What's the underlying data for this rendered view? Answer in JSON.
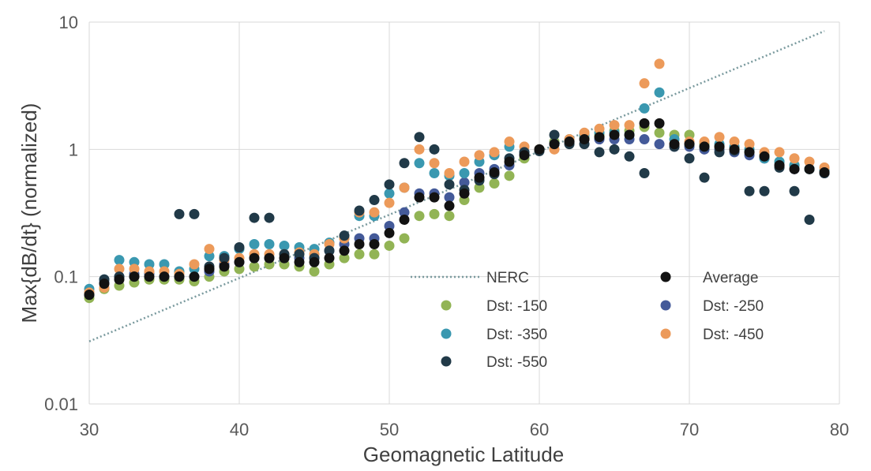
{
  "chart_data": {
    "type": "scatter",
    "title": "",
    "xlabel": "Geomagnetic Latitude",
    "ylabel": "Max{dB/dt} (normalized)",
    "xlim": [
      30,
      80
    ],
    "ylim": [
      0.01,
      10
    ],
    "yscale": "log",
    "xticks": [
      "30",
      "40",
      "50",
      "60",
      "70",
      "80"
    ],
    "yticks": [
      "0.01",
      "0.1",
      "1",
      "10"
    ],
    "grid": true,
    "legend_position": "lower-right",
    "nerc_line": {
      "name": "NERC",
      "color": "#7a9a9e",
      "x": [
        30,
        79
      ],
      "y": [
        0.031,
        8.5
      ]
    },
    "series": [
      {
        "name": "Dst: -150",
        "color": "#92b455",
        "x": [
          30,
          31,
          32,
          33,
          34,
          35,
          36,
          37,
          38,
          39,
          40,
          41,
          42,
          43,
          44,
          45,
          46,
          47,
          48,
          49,
          50,
          51,
          52,
          53,
          54,
          55,
          56,
          57,
          58,
          59,
          60,
          61,
          62,
          63,
          64,
          65,
          66,
          67,
          68,
          69,
          70,
          71,
          72,
          73,
          74,
          75,
          76,
          77,
          78,
          79
        ],
        "y": [
          0.068,
          0.08,
          0.085,
          0.09,
          0.095,
          0.095,
          0.095,
          0.092,
          0.1,
          0.11,
          0.115,
          0.12,
          0.125,
          0.125,
          0.12,
          0.11,
          0.125,
          0.14,
          0.15,
          0.15,
          0.175,
          0.2,
          0.3,
          0.31,
          0.3,
          0.4,
          0.5,
          0.54,
          0.62,
          0.85,
          1.0,
          1.15,
          1.18,
          1.25,
          1.3,
          1.4,
          1.4,
          1.5,
          1.35,
          1.3,
          1.3,
          1.1,
          1.05,
          1.0,
          0.95,
          0.9,
          0.8,
          0.75,
          0.7,
          0.68
        ]
      },
      {
        "name": "Dst: -250",
        "color": "#445a99",
        "x": [
          30,
          31,
          32,
          33,
          34,
          35,
          36,
          37,
          38,
          39,
          40,
          41,
          42,
          43,
          44,
          45,
          46,
          47,
          48,
          49,
          50,
          51,
          52,
          53,
          54,
          55,
          56,
          57,
          58,
          59,
          60,
          61,
          62,
          63,
          64,
          65,
          66,
          67,
          68,
          69,
          70,
          71,
          72,
          73,
          74,
          75,
          76,
          77,
          78,
          79
        ],
        "y": [
          0.075,
          0.09,
          0.1,
          0.105,
          0.105,
          0.1,
          0.1,
          0.1,
          0.11,
          0.125,
          0.13,
          0.14,
          0.14,
          0.14,
          0.14,
          0.14,
          0.16,
          0.18,
          0.2,
          0.2,
          0.25,
          0.32,
          0.45,
          0.45,
          0.42,
          0.55,
          0.65,
          0.7,
          0.75,
          0.92,
          1.0,
          1.1,
          1.15,
          1.2,
          1.2,
          1.2,
          1.2,
          1.2,
          1.1,
          1.05,
          1.05,
          1.0,
          1.0,
          0.95,
          0.9,
          0.85,
          0.75,
          0.7,
          0.7,
          0.65
        ]
      },
      {
        "name": "Dst: -350",
        "color": "#3a98b0",
        "x": [
          30,
          31,
          32,
          33,
          34,
          35,
          36,
          37,
          38,
          39,
          40,
          41,
          42,
          43,
          44,
          45,
          46,
          47,
          48,
          49,
          50,
          51,
          52,
          53,
          54,
          55,
          56,
          57,
          58,
          59,
          60,
          61,
          62,
          63,
          64,
          65,
          66,
          67,
          68,
          69,
          70,
          71,
          72,
          73,
          74,
          75,
          76,
          77,
          78,
          79
        ],
        "y": [
          0.08,
          0.095,
          0.135,
          0.13,
          0.125,
          0.125,
          0.11,
          0.115,
          0.145,
          0.145,
          0.165,
          0.18,
          0.18,
          0.175,
          0.17,
          0.165,
          0.185,
          0.2,
          0.3,
          0.3,
          0.45,
          0.5,
          0.78,
          0.65,
          0.62,
          0.65,
          0.8,
          0.9,
          1.05,
          0.95,
          1.0,
          1.1,
          1.2,
          1.3,
          1.35,
          1.35,
          1.3,
          2.1,
          2.8,
          1.2,
          1.1,
          1.05,
          1.1,
          1.05,
          1.0,
          0.85,
          0.8,
          0.75,
          0.7,
          0.68
        ]
      },
      {
        "name": "Dst: -450",
        "color": "#ec9a5a",
        "x": [
          30,
          31,
          32,
          33,
          34,
          35,
          36,
          37,
          38,
          39,
          40,
          41,
          42,
          43,
          44,
          45,
          46,
          47,
          48,
          49,
          50,
          51,
          52,
          53,
          54,
          55,
          56,
          57,
          58,
          59,
          60,
          61,
          62,
          63,
          64,
          65,
          66,
          67,
          68,
          69,
          70,
          71,
          72,
          73,
          74,
          75,
          76,
          77,
          78,
          79
        ],
        "y": [
          0.075,
          0.082,
          0.115,
          0.115,
          0.11,
          0.11,
          0.105,
          0.125,
          0.165,
          0.135,
          0.14,
          0.15,
          0.15,
          0.15,
          0.155,
          0.15,
          0.18,
          0.2,
          0.32,
          0.32,
          0.38,
          0.5,
          1.0,
          0.78,
          0.65,
          0.8,
          0.9,
          0.95,
          1.15,
          1.05,
          1.0,
          1.0,
          1.2,
          1.35,
          1.45,
          1.55,
          1.55,
          3.3,
          4.7,
          1.1,
          1.15,
          1.15,
          1.25,
          1.15,
          1.1,
          0.95,
          0.95,
          0.85,
          0.8,
          0.72
        ]
      },
      {
        "name": "Dst: -550",
        "color": "#213a48",
        "x": [
          30,
          31,
          32,
          33,
          36,
          37,
          38,
          39,
          40,
          41,
          42,
          43,
          44,
          45,
          46,
          47,
          48,
          49,
          50,
          51,
          52,
          53,
          54,
          55,
          56,
          57,
          58,
          59,
          60,
          61,
          62,
          63,
          64,
          65,
          66,
          67,
          69,
          70,
          71,
          72,
          73,
          74,
          75,
          76,
          77,
          78,
          79
        ],
        "y": [
          0.072,
          0.095,
          0.1,
          0.1,
          0.31,
          0.31,
          0.12,
          0.14,
          0.17,
          0.29,
          0.29,
          0.15,
          0.15,
          0.14,
          0.16,
          0.21,
          0.33,
          0.4,
          0.53,
          0.78,
          1.25,
          1.0,
          0.53,
          0.48,
          0.57,
          0.64,
          0.85,
          0.95,
          0.97,
          1.3,
          1.1,
          1.1,
          0.95,
          1.0,
          0.88,
          0.65,
          1.05,
          0.85,
          0.6,
          0.95,
          0.98,
          0.47,
          0.47,
          0.72,
          0.47,
          0.28,
          0.65
        ]
      },
      {
        "name": "Average",
        "color": "#121212",
        "x": [
          30,
          31,
          32,
          33,
          34,
          35,
          36,
          37,
          38,
          39,
          40,
          41,
          42,
          43,
          44,
          45,
          46,
          47,
          48,
          49,
          50,
          51,
          52,
          53,
          54,
          55,
          56,
          57,
          58,
          59,
          60,
          61,
          62,
          63,
          64,
          65,
          66,
          67,
          68,
          69,
          70,
          71,
          72,
          73,
          74,
          75,
          76,
          77,
          78,
          79
        ],
        "y": [
          0.072,
          0.088,
          0.095,
          0.1,
          0.1,
          0.1,
          0.1,
          0.1,
          0.115,
          0.12,
          0.13,
          0.14,
          0.14,
          0.14,
          0.13,
          0.13,
          0.14,
          0.16,
          0.18,
          0.18,
          0.22,
          0.28,
          0.42,
          0.42,
          0.36,
          0.45,
          0.6,
          0.66,
          0.8,
          0.9,
          1.0,
          1.1,
          1.15,
          1.2,
          1.25,
          1.3,
          1.3,
          1.6,
          1.6,
          1.1,
          1.1,
          1.05,
          1.05,
          1.0,
          0.95,
          0.88,
          0.75,
          0.7,
          0.7,
          0.66
        ]
      }
    ],
    "legend": [
      {
        "label": "NERC",
        "kind": "line",
        "color": "#7a9a9e"
      },
      {
        "label": "Average",
        "kind": "dot",
        "color": "#121212"
      },
      {
        "label": "Dst:  -150",
        "kind": "dot",
        "color": "#92b455"
      },
      {
        "label": "Dst:  -250",
        "kind": "dot",
        "color": "#445a99"
      },
      {
        "label": "Dst:  -350",
        "kind": "dot",
        "color": "#3a98b0"
      },
      {
        "label": "Dst:  -450",
        "kind": "dot",
        "color": "#ec9a5a"
      },
      {
        "label": "Dst:  -550",
        "kind": "dot",
        "color": "#213a48"
      }
    ]
  }
}
